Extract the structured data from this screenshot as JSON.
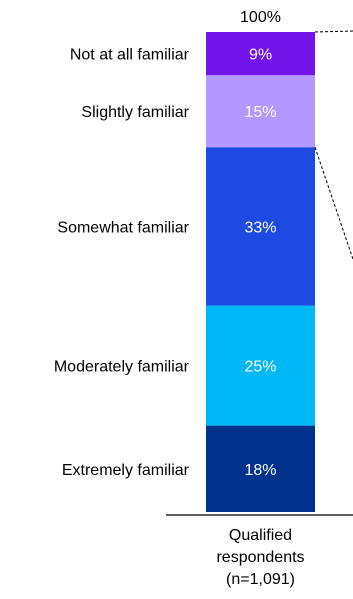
{
  "chart_data": {
    "type": "bar",
    "stacked": true,
    "percent": true,
    "categories": [
      "Qualified respondents (n=1,091)"
    ],
    "category_label_lines": [
      "Qualified",
      "respondents",
      "(n=1,091)"
    ],
    "total_label": "100%",
    "series": [
      {
        "name": "Extremely familiar",
        "value": 18,
        "label": "18%",
        "color": "#00338d"
      },
      {
        "name": "Moderately familiar",
        "value": 25,
        "label": "25%",
        "color": "#00b8f5"
      },
      {
        "name": "Somewhat familiar",
        "value": 33,
        "label": "33%",
        "color": "#1e49e2"
      },
      {
        "name": "Slightly familiar",
        "value": 15,
        "label": "15%",
        "color": "#b497ff"
      },
      {
        "name": "Not at all familiar",
        "value": 9,
        "label": "9%",
        "color": "#7213ea"
      }
    ],
    "legend": "left, aligned with segments",
    "ylim": [
      0,
      100
    ],
    "grid": false
  }
}
